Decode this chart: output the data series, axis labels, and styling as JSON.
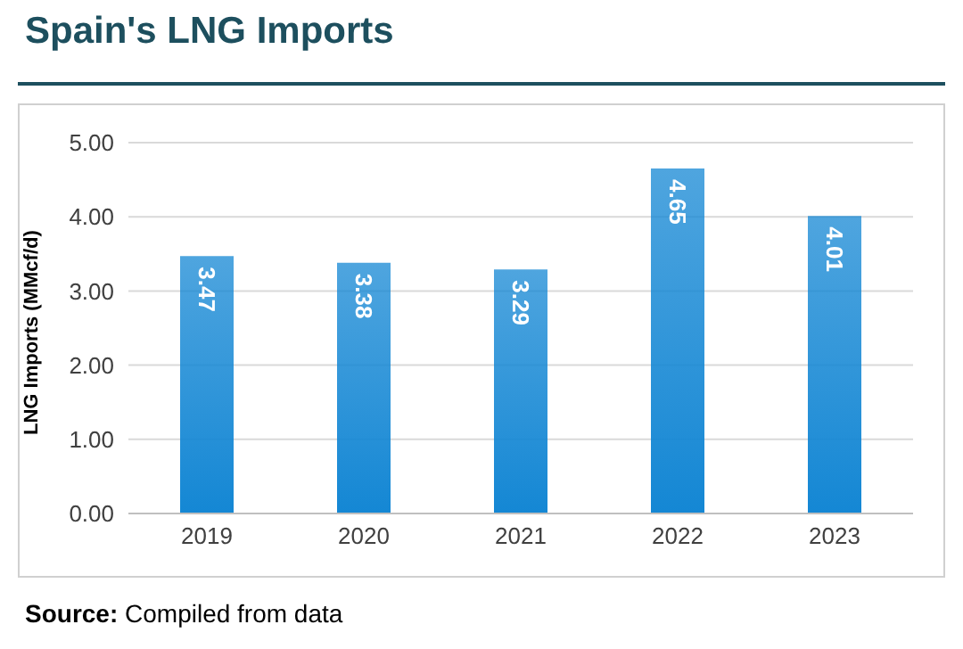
{
  "chart_data": {
    "type": "bar",
    "title": "Spain's LNG Imports",
    "ylabel": "LNG Imports (MMcf/d)",
    "categories": [
      "2019",
      "2020",
      "2021",
      "2022",
      "2023"
    ],
    "values": [
      3.47,
      3.38,
      3.29,
      4.65,
      4.01
    ],
    "color": "#1487d4",
    "ylim": [
      0,
      5
    ],
    "yticks": [
      {
        "value": 0,
        "label": "0.00"
      },
      {
        "value": 1,
        "label": "1.00"
      },
      {
        "value": 2,
        "label": "2.00"
      },
      {
        "value": 3,
        "label": "3.00"
      },
      {
        "value": 4,
        "label": "4.00"
      },
      {
        "value": 5,
        "label": "5.00"
      }
    ],
    "grid": "y",
    "data_labels": true,
    "annotations": [
      "Source: Compiled from data"
    ]
  }
}
